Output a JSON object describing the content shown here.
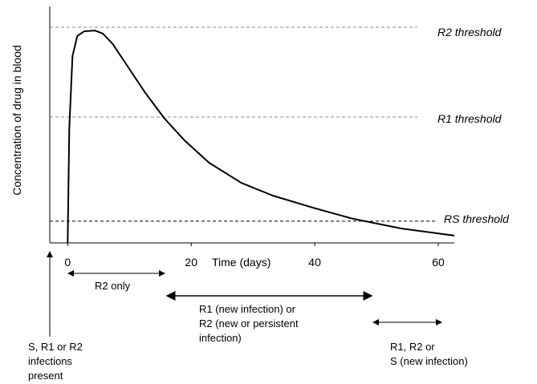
{
  "chart_data": {
    "type": "line",
    "ylabel": "Concentration of drug in blood",
    "xlabel": "Time (days)",
    "x": [
      0,
      0.26,
      0.78,
      1.56,
      2.7,
      4.4,
      5.7,
      7.3,
      9.9,
      12.5,
      15.7,
      18.9,
      22.9,
      28.1,
      33.2,
      39.7,
      46.2,
      54,
      62.6
    ],
    "series": [
      {
        "color": "#000000",
        "values": [
          0,
          48.5,
          79,
          87.5,
          89.5,
          89.8,
          88.5,
          84.1,
          73.9,
          63.7,
          52.5,
          43.4,
          33.9,
          25.4,
          20,
          14.9,
          10.2,
          6.1,
          3.1
        ]
      }
    ],
    "xlim": [
      -2.9,
      62.6
    ],
    "ylim": [
      0,
      100
    ],
    "xticks": [
      0,
      20,
      40,
      60
    ],
    "thresholds": [
      {
        "label": "R2 threshold",
        "value": 91.2,
        "color": "#888888"
      },
      {
        "label": "R1 threshold",
        "value": 53.2,
        "color": "#888888"
      },
      {
        "label": "RS threshold",
        "value": 9.2,
        "color": "#000000"
      }
    ],
    "annotations": [
      {
        "lines": [
          "S, R1 or R2",
          "infections",
          "present"
        ]
      },
      {
        "lines": [
          "R2 only"
        ]
      },
      {
        "lines": [
          "R1 (new infection) or",
          "R2 (new or persistent",
          "infection)"
        ]
      },
      {
        "lines": [
          "R1, R2 or",
          "S (new infection)"
        ]
      }
    ]
  }
}
